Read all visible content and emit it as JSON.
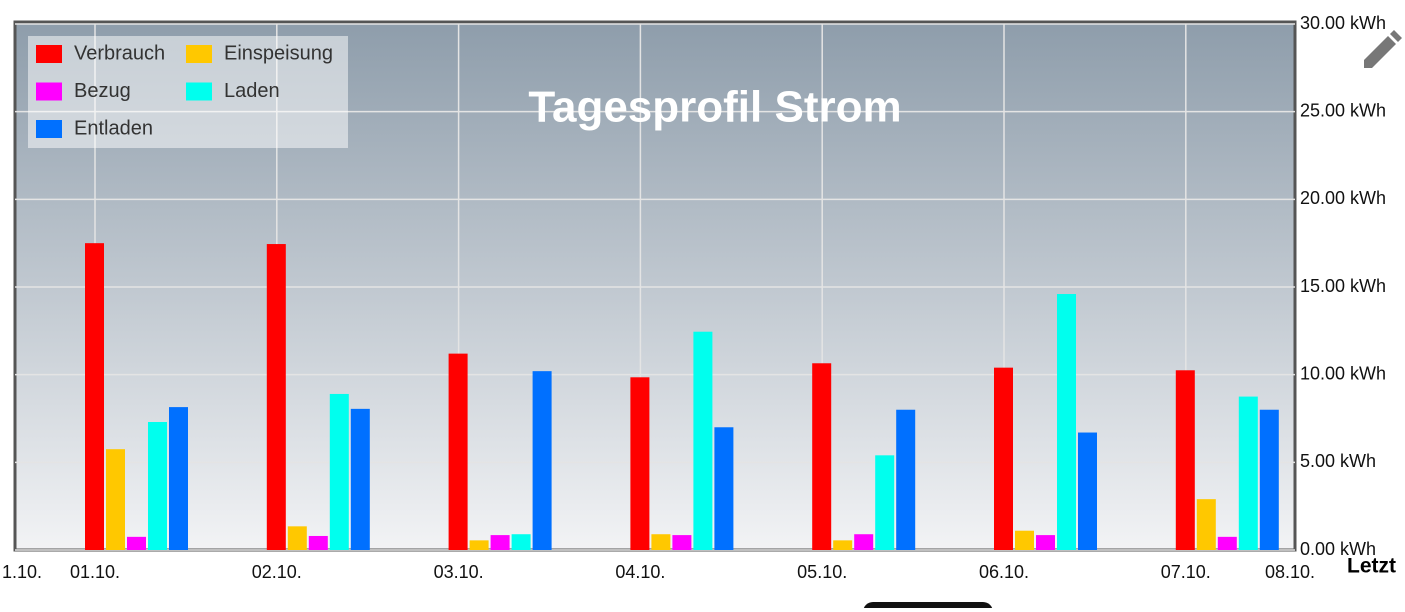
{
  "chart_data": {
    "type": "bar",
    "title": "Tagesprofil Strom",
    "categories": [
      "1.10.",
      "01.10.",
      "02.10.",
      "03.10.",
      "04.10.",
      "05.10.",
      "06.10.",
      "07.10.",
      "08.10."
    ],
    "series": [
      {
        "name": "Verbrauch",
        "color": "#ff0000",
        "values": [
          null,
          17.5,
          17.45,
          11.2,
          9.85,
          10.65,
          10.4,
          10.25,
          null
        ]
      },
      {
        "name": "Einspeisung",
        "color": "#ffc800",
        "values": [
          null,
          5.75,
          1.35,
          0.55,
          0.9,
          0.55,
          1.1,
          2.9,
          null
        ]
      },
      {
        "name": "Bezug",
        "color": "#ff00ff",
        "values": [
          null,
          0.75,
          0.8,
          0.85,
          0.85,
          0.9,
          0.85,
          0.75,
          null
        ]
      },
      {
        "name": "Laden",
        "color": "#00ffee",
        "values": [
          null,
          7.3,
          8.9,
          0.9,
          12.45,
          5.4,
          14.6,
          8.75,
          null
        ]
      },
      {
        "name": "Entladen",
        "color": "#0070ff",
        "values": [
          null,
          8.15,
          8.05,
          10.2,
          7.0,
          8.0,
          6.7,
          8.0,
          null
        ]
      }
    ],
    "ylim": [
      0,
      30
    ],
    "yticks": [
      {
        "value": 0,
        "label": "0.00 kWh"
      },
      {
        "value": 5,
        "label": "5.00 kWh"
      },
      {
        "value": 10,
        "label": "10.00 kWh"
      },
      {
        "value": 15,
        "label": "15.00 kWh"
      },
      {
        "value": 20,
        "label": "20.00 kWh"
      },
      {
        "value": 25,
        "label": "25.00 kWh"
      },
      {
        "value": 30,
        "label": "30.00 kWh"
      }
    ],
    "grid": true,
    "legend": "top-left"
  },
  "button_label": "Letzt"
}
